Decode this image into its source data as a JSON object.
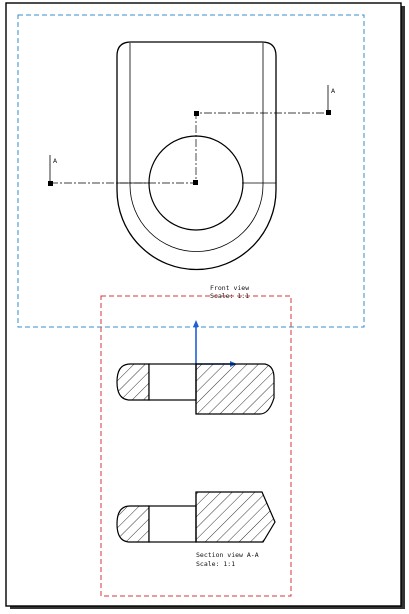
{
  "colors": {
    "paper": "#ffffff",
    "sheet_shadow": "#333333",
    "front_view_frame": "#3a8fc8",
    "section_view_frame": "#d0393b",
    "axis": "#1f5fd6",
    "geometry": "#000000"
  },
  "front_view": {
    "caption_title": "Front view",
    "caption_scale": "Scale:  1:1",
    "section_label_left": "A",
    "section_label_right": "A"
  },
  "section_view": {
    "caption_title": "Section view A-A",
    "caption_scale": "Scale:  1:1"
  },
  "icons": [
    "axis-system-icon",
    "section-arrow-icon"
  ]
}
